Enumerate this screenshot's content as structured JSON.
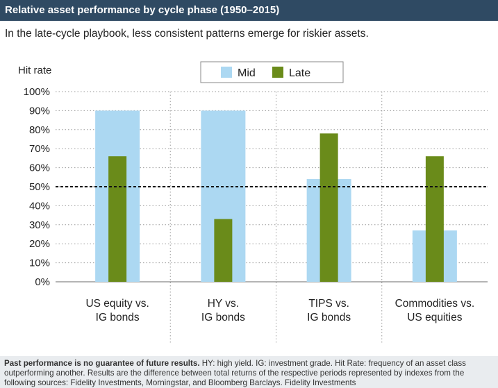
{
  "header": {
    "title": "Relative asset performance by cycle phase (1950–2015)",
    "subtitle": "In the late-cycle playbook, less consistent patterns emerge for riskier assets."
  },
  "footer": {
    "bold_text": "Past performance is no guarantee of future results.",
    "text": " HY: high yield. IG: investment grade. Hit Rate: frequency of an asset class outperforming another. Results are the difference between total returns of the respective periods represented by indexes from the following sources: Fidelity Investments, Morningstar, and Bloomberg Barclays. Fidelity Investments"
  },
  "chart_data": {
    "type": "bar",
    "ylabel": "Hit rate",
    "ylim": [
      0,
      100
    ],
    "yticks": [
      "0%",
      "10%",
      "20%",
      "30%",
      "40%",
      "50%",
      "60%",
      "70%",
      "80%",
      "90%",
      "100%"
    ],
    "categories": [
      [
        "US equity vs.",
        "IG bonds"
      ],
      [
        "HY vs.",
        "IG bonds"
      ],
      [
        "TIPS vs.",
        "IG bonds"
      ],
      [
        "Commodities vs.",
        "US equities"
      ]
    ],
    "series": [
      {
        "name": "Mid",
        "values": [
          90,
          90,
          54,
          27
        ],
        "color": "#acd8f2"
      },
      {
        "name": "Late",
        "values": [
          66,
          33,
          78,
          66
        ],
        "color": "#6a8b1a"
      }
    ],
    "reference_line": {
      "value": 50,
      "style": "dashed"
    },
    "legend_position": "top-center",
    "grid": true
  }
}
